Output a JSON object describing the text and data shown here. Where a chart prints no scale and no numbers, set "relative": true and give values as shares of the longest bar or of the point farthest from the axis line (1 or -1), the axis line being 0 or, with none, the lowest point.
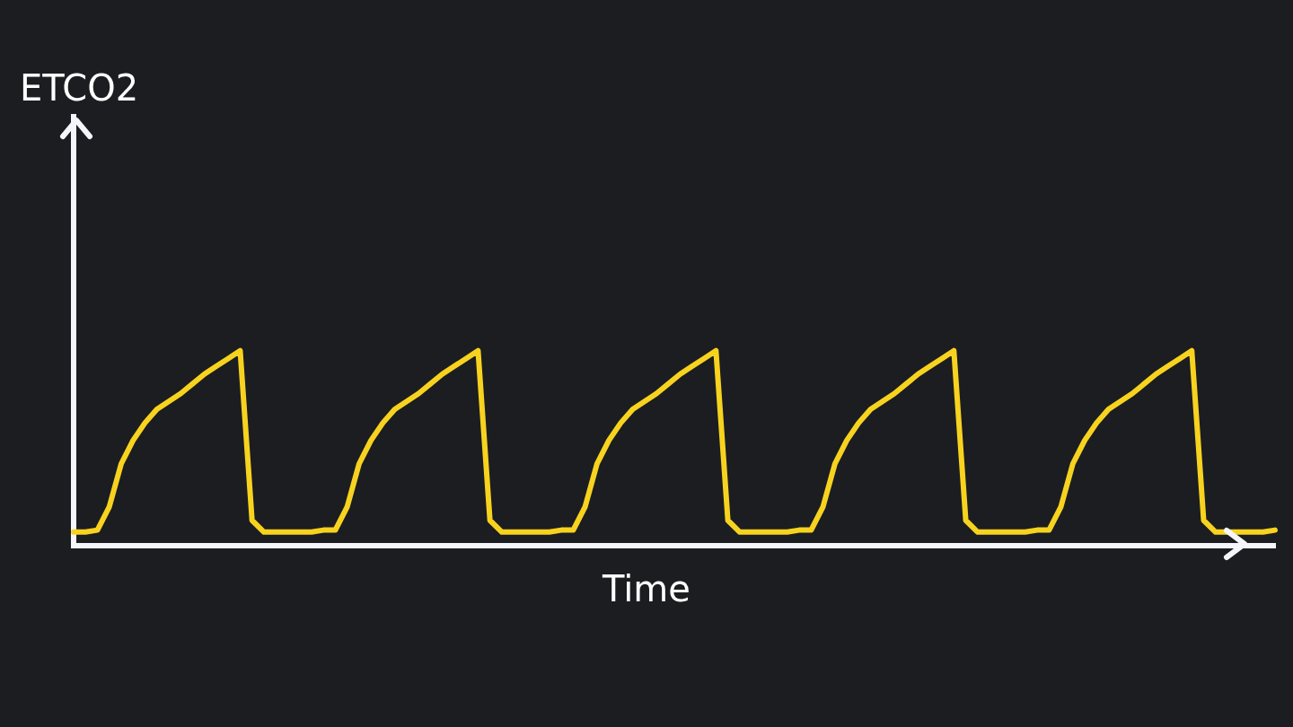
{
  "chart_data": {
    "type": "line",
    "xlabel": "Time",
    "annotations": [
      "ETCO2"
    ],
    "relative": true,
    "grid": false,
    "legend": false,
    "marker": "none",
    "line_style": "solid",
    "categories": [
      null,
      null,
      null,
      null,
      null,
      null,
      null,
      null,
      null,
      null,
      null,
      null,
      null,
      null,
      null,
      null,
      null,
      null,
      null,
      null,
      null,
      null,
      null,
      null,
      null,
      null,
      null,
      null,
      null,
      null,
      null,
      null,
      null,
      null,
      null,
      null,
      null,
      null,
      null,
      null,
      null,
      null,
      null,
      null,
      null,
      null,
      null,
      null,
      null,
      null,
      null,
      null,
      null,
      null,
      null,
      null,
      null,
      null,
      null,
      null,
      null,
      null,
      null,
      null,
      null,
      null,
      null,
      null,
      null,
      null,
      null,
      null,
      null,
      null,
      null,
      null,
      null,
      null,
      null,
      null,
      null,
      null,
      null,
      null,
      null,
      null,
      null,
      null,
      null,
      null,
      null,
      null,
      null,
      null,
      null,
      null,
      null,
      null,
      null,
      null,
      null,
      null
    ],
    "series": [
      {
        "color": "#f7d31f",
        "values": [
          0.07,
          0.07,
          0.08,
          0.2,
          0.42,
          0.54,
          0.63,
          0.7,
          0.74,
          0.78,
          0.83,
          0.88,
          0.92,
          0.96,
          1,
          0.13,
          0.07,
          0.07,
          0.07,
          0.07,
          0.07,
          0.08,
          0.08,
          0.2,
          0.42,
          0.54,
          0.63,
          0.7,
          0.74,
          0.78,
          0.83,
          0.88,
          0.92,
          0.96,
          1,
          0.13,
          0.07,
          0.07,
          0.07,
          0.07,
          0.07,
          0.08,
          0.08,
          0.2,
          0.42,
          0.54,
          0.63,
          0.7,
          0.74,
          0.78,
          0.83,
          0.88,
          0.92,
          0.96,
          1,
          0.13,
          0.07,
          0.07,
          0.07,
          0.07,
          0.07,
          0.08,
          0.08,
          0.2,
          0.42,
          0.54,
          0.63,
          0.7,
          0.74,
          0.78,
          0.83,
          0.88,
          0.92,
          0.96,
          1,
          0.13,
          0.07,
          0.07,
          0.07,
          0.07,
          0.07,
          0.08,
          0.08,
          0.2,
          0.42,
          0.54,
          0.63,
          0.7,
          0.74,
          0.78,
          0.83,
          0.88,
          0.92,
          0.96,
          1,
          0.13,
          0.07,
          0.07,
          0.07,
          0.07,
          0.07,
          0.08
        ]
      }
    ]
  }
}
